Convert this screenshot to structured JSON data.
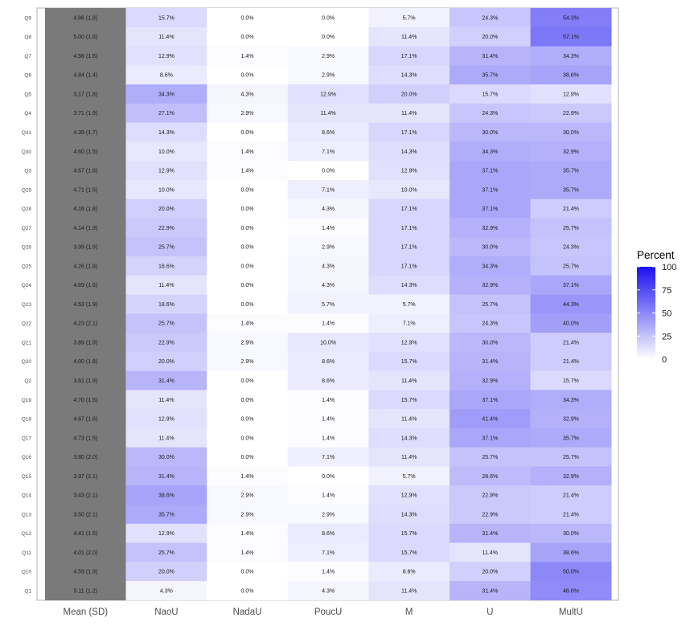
{
  "chart_data": {
    "type": "heatmap",
    "columns": [
      "Mean (SD)",
      "NaoU",
      "NadaU",
      "PoucU",
      "M",
      "U",
      "MultU"
    ],
    "rows": [
      {
        "label": "Q9",
        "mean_sd": "4.86 (1.8)",
        "values": [
          15.7,
          0.0,
          0.0,
          5.7,
          24.3,
          54.3
        ]
      },
      {
        "label": "Q8",
        "mean_sd": "5.00 (1.6)",
        "values": [
          11.4,
          0.0,
          0.0,
          11.4,
          20.0,
          57.1
        ]
      },
      {
        "label": "Q7",
        "mean_sd": "4.56 (1.6)",
        "values": [
          12.9,
          1.4,
          2.9,
          17.1,
          31.4,
          34.3
        ]
      },
      {
        "label": "Q6",
        "mean_sd": "4.84 (1.4)",
        "values": [
          8.6,
          0.0,
          2.9,
          14.3,
          35.7,
          38.6
        ]
      },
      {
        "label": "Q5",
        "mean_sd": "3.17 (1.8)",
        "values": [
          34.3,
          4.3,
          12.9,
          20.0,
          15.7,
          12.9
        ]
      },
      {
        "label": "Q4",
        "mean_sd": "3.71 (1.9)",
        "values": [
          27.1,
          2.9,
          11.4,
          11.4,
          24.3,
          22.9
        ]
      },
      {
        "label": "Q31",
        "mean_sd": "4.39 (1.7)",
        "values": [
          14.3,
          0.0,
          8.6,
          17.1,
          30.0,
          30.0
        ]
      },
      {
        "label": "Q30",
        "mean_sd": "4.60 (1.5)",
        "values": [
          10.0,
          1.4,
          7.1,
          14.3,
          34.3,
          32.9
        ]
      },
      {
        "label": "Q3",
        "mean_sd": "4.67 (1.6)",
        "values": [
          12.9,
          1.4,
          0.0,
          12.9,
          37.1,
          35.7
        ]
      },
      {
        "label": "Q29",
        "mean_sd": "4.71 (1.5)",
        "values": [
          10.0,
          0.0,
          7.1,
          10.0,
          37.1,
          35.7
        ]
      },
      {
        "label": "Q28",
        "mean_sd": "4.16 (1.8)",
        "values": [
          20.0,
          0.0,
          4.3,
          17.1,
          37.1,
          21.4
        ]
      },
      {
        "label": "Q27",
        "mean_sd": "4.14 (1.9)",
        "values": [
          22.9,
          0.0,
          1.4,
          17.1,
          32.9,
          25.7
        ]
      },
      {
        "label": "Q26",
        "mean_sd": "3.99 (1.9)",
        "values": [
          25.7,
          0.0,
          2.9,
          17.1,
          30.0,
          24.3
        ]
      },
      {
        "label": "Q25",
        "mean_sd": "4.26 (1.8)",
        "values": [
          18.6,
          0.0,
          4.3,
          17.1,
          34.3,
          25.7
        ]
      },
      {
        "label": "Q24",
        "mean_sd": "4.69 (1.6)",
        "values": [
          11.4,
          0.0,
          4.3,
          14.3,
          32.9,
          37.1
        ]
      },
      {
        "label": "Q23",
        "mean_sd": "4.53 (1.9)",
        "values": [
          18.6,
          0.0,
          5.7,
          5.7,
          25.7,
          44.3
        ]
      },
      {
        "label": "Q22",
        "mean_sd": "4.23 (2.1)",
        "values": [
          25.7,
          1.4,
          1.4,
          7.1,
          24.3,
          40.0
        ]
      },
      {
        "label": "Q21",
        "mean_sd": "3.89 (1.9)",
        "values": [
          22.9,
          2.9,
          10.0,
          12.9,
          30.0,
          21.4
        ]
      },
      {
        "label": "Q20",
        "mean_sd": "4.00 (1.8)",
        "values": [
          20.0,
          2.9,
          8.6,
          15.7,
          31.4,
          21.4
        ]
      },
      {
        "label": "Q2",
        "mean_sd": "3.61 (1.9)",
        "values": [
          31.4,
          0.0,
          8.6,
          11.4,
          32.9,
          15.7
        ]
      },
      {
        "label": "Q19",
        "mean_sd": "4.70 (1.5)",
        "values": [
          11.4,
          0.0,
          1.4,
          15.7,
          37.1,
          34.3
        ]
      },
      {
        "label": "Q18",
        "mean_sd": "4.67 (1.6)",
        "values": [
          12.9,
          0.0,
          1.4,
          11.4,
          41.4,
          32.9
        ]
      },
      {
        "label": "Q17",
        "mean_sd": "4.73 (1.5)",
        "values": [
          11.4,
          0.0,
          1.4,
          14.3,
          37.1,
          35.7
        ]
      },
      {
        "label": "Q16",
        "mean_sd": "3.80 (2.0)",
        "values": [
          30.0,
          0.0,
          7.1,
          11.4,
          25.7,
          25.7
        ]
      },
      {
        "label": "Q15",
        "mean_sd": "3.97 (2.1)",
        "values": [
          31.4,
          1.4,
          0.0,
          5.7,
          28.6,
          32.9
        ]
      },
      {
        "label": "Q14",
        "mean_sd": "3.43 (2.1)",
        "values": [
          38.6,
          2.9,
          1.4,
          12.9,
          22.9,
          21.4
        ]
      },
      {
        "label": "Q13",
        "mean_sd": "3.50 (2.1)",
        "values": [
          35.7,
          2.9,
          2.9,
          14.3,
          22.9,
          21.4
        ]
      },
      {
        "label": "Q12",
        "mean_sd": "4.41 (1.6)",
        "values": [
          12.9,
          1.4,
          8.6,
          15.7,
          31.4,
          30.0
        ]
      },
      {
        "label": "Q11",
        "mean_sd": "4.01 (2.0)",
        "values": [
          25.7,
          1.4,
          7.1,
          15.7,
          11.4,
          38.6
        ]
      },
      {
        "label": "Q10",
        "mean_sd": "4.59 (1.9)",
        "values": [
          20.0,
          0.0,
          1.4,
          8.6,
          20.0,
          50.0
        ]
      },
      {
        "label": "Q1",
        "mean_sd": "5.11 (1.2)",
        "values": [
          4.3,
          0.0,
          4.3,
          11.4,
          31.4,
          48.6
        ]
      }
    ],
    "value_suffix": "%",
    "legend": {
      "title": "Percent",
      "position": "right",
      "scale": [
        0,
        100
      ],
      "ticks": [
        "100",
        "75",
        "50",
        "25",
        "0"
      ],
      "low_color": "#ffffff",
      "high_color": "#1a10f0"
    },
    "mean_column_color": "#7a7a7a",
    "grid": false
  }
}
